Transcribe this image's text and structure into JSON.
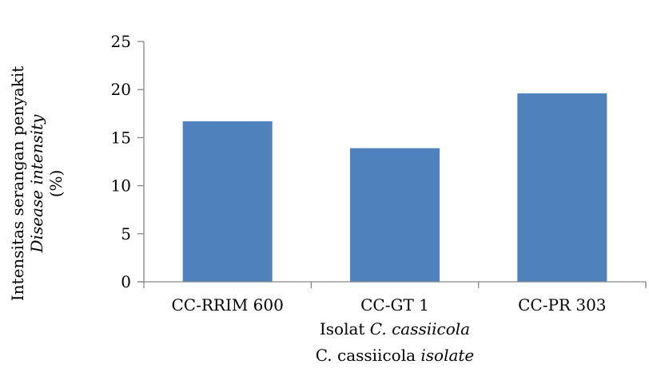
{
  "chart_data": {
    "type": "bar",
    "categories": [
      "CC-RRIM 600",
      "CC-GT 1",
      "CC-PR 303"
    ],
    "values": [
      16.7,
      13.9,
      19.6
    ],
    "ylim": [
      0,
      25
    ],
    "yticks": [
      "0",
      "5",
      "10",
      "15",
      "20",
      "25"
    ],
    "ylabel_line1": "Intensitas serangan penyakit",
    "ylabel_line2": "Disease intensity",
    "ylabel_line3": "(%)",
    "xlabel_line1_prefix": "Isolat ",
    "xlabel_line1_italic": "C. cassiicola",
    "xlabel_line2_prefix": "C. cassiicola ",
    "xlabel_line2_italic": "isolate",
    "grid": false,
    "legend": "none",
    "bar_color": "#4f81bd",
    "axis_color": "#868686"
  }
}
